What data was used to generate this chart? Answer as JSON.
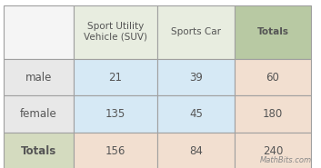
{
  "col_headers": [
    "Sport Utility\nVehicle (SUV)",
    "Sports Car",
    "Totals"
  ],
  "row_headers": [
    "male",
    "female",
    "Totals"
  ],
  "values": [
    [
      "21",
      "39",
      "60"
    ],
    [
      "135",
      "45",
      "180"
    ],
    [
      "156",
      "84",
      "240"
    ]
  ],
  "watermark": "MathBits.com",
  "color_data_blue": "#d6e9f5",
  "color_totals_col": "#f2dfd0",
  "color_header_totals_cell": "#b8c9a3",
  "border_color": "#a0a0a0",
  "text_color": "#555555",
  "fig_bg": "#ffffff",
  "color_header_bg": "#e8ede0",
  "color_row_label": "#e8e8e8",
  "color_totals_row_label": "#d4dbbf",
  "color_header_empty": "#f5f5f5"
}
